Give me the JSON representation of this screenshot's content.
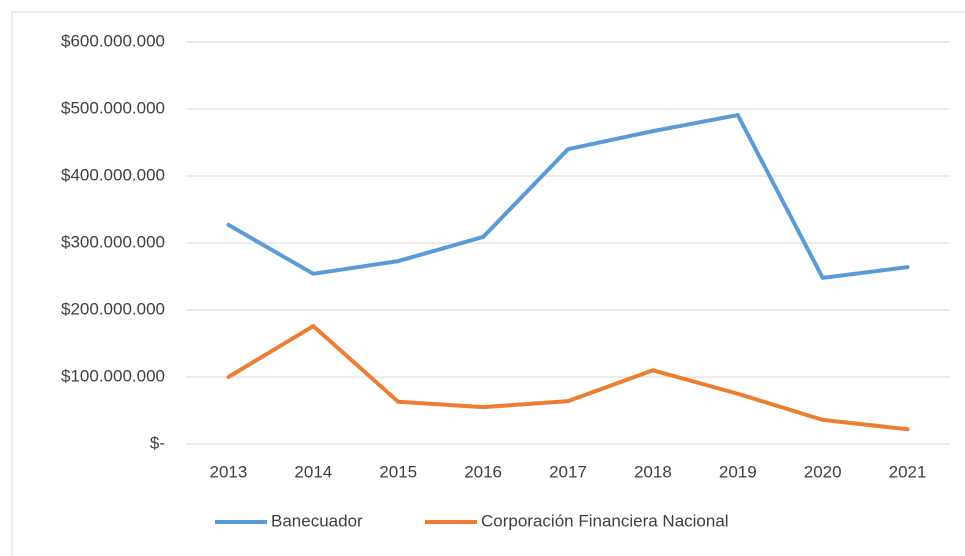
{
  "chart_data": {
    "type": "line",
    "categories": [
      "2013",
      "2014",
      "2015",
      "2016",
      "2017",
      "2018",
      "2019",
      "2020",
      "2021"
    ],
    "series": [
      {
        "name": "Banecuador",
        "color": "#5b9bd5",
        "values": [
          327000000,
          254000000,
          273000000,
          309000000,
          440000000,
          467000000,
          491000000,
          248000000,
          264000000
        ]
      },
      {
        "name": "Corporación Financiera Nacional",
        "color": "#ed7d31",
        "values": [
          100000000,
          176000000,
          63000000,
          55000000,
          64000000,
          110000000,
          75000000,
          36000000,
          22000000
        ]
      }
    ],
    "ylim": [
      0,
      600000000
    ],
    "yticks": [
      {
        "value": 0,
        "label": "$-"
      },
      {
        "value": 100000000,
        "label": "$100.000.000"
      },
      {
        "value": 200000000,
        "label": "$200.000.000"
      },
      {
        "value": 300000000,
        "label": "$300.000.000"
      },
      {
        "value": 400000000,
        "label": "$400.000.000"
      },
      {
        "value": 500000000,
        "label": "$500.000.000"
      },
      {
        "value": 600000000,
        "label": "$600.000.000"
      }
    ],
    "grid": true,
    "legend": "bottom"
  }
}
